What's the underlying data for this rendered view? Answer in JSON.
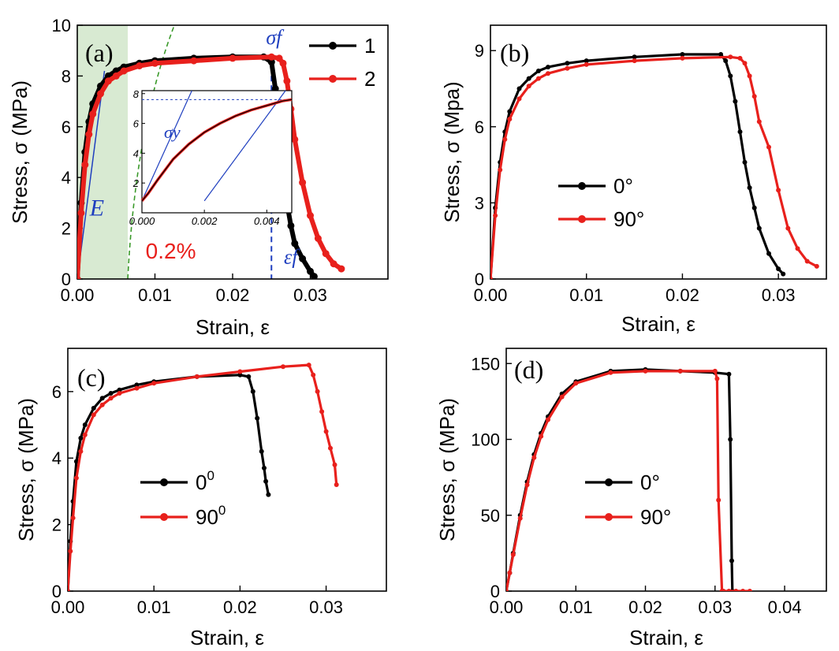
{
  "chart_data": [
    {
      "type": "line",
      "panel": "(a)",
      "xlabel": "Strain, ε",
      "ylabel": "Stress, σ (MPa)",
      "xlim": [
        0,
        0.04
      ],
      "ylim": [
        0,
        10
      ],
      "xticks": [
        "0.00",
        "0.01",
        "0.02",
        "0.03"
      ],
      "yticks": [
        "0",
        "2",
        "4",
        "6",
        "8",
        "10"
      ],
      "legend": "top-right",
      "annotations": {
        "sigma_f": "σf",
        "modulus": "E",
        "offset": "0.2%",
        "eps_f": "εf"
      },
      "inset": {
        "xticks": [
          "0.000",
          "0.002",
          "0.004"
        ],
        "yticks": [
          "2",
          "4",
          "6",
          "8"
        ],
        "xlim": [
          0,
          0.0048
        ],
        "ylim": [
          0,
          8.2
        ],
        "sigma_y": "σy",
        "curve": {
          "x": [
            0,
            0.0002,
            0.0005,
            0.001,
            0.0015,
            0.002,
            0.0025,
            0.003,
            0.0035,
            0.004,
            0.0045,
            0.0048
          ],
          "y": [
            0.8,
            1.3,
            2.2,
            3.6,
            4.6,
            5.4,
            6.0,
            6.5,
            6.9,
            7.2,
            7.5,
            7.6
          ]
        }
      },
      "series": [
        {
          "name": "1",
          "color": "#000000",
          "x": [
            0,
            0.0005,
            0.001,
            0.0015,
            0.002,
            0.003,
            0.004,
            0.005,
            0.006,
            0.008,
            0.01,
            0.015,
            0.02,
            0.024,
            0.025,
            0.0255,
            0.026,
            0.0265,
            0.027,
            0.0275,
            0.028,
            0.029,
            0.03,
            0.0305
          ],
          "y": [
            0,
            3.0,
            5.0,
            6.2,
            6.9,
            7.6,
            8.0,
            8.2,
            8.35,
            8.5,
            8.6,
            8.7,
            8.75,
            8.75,
            8.55,
            7.5,
            5.8,
            4.2,
            3.0,
            2.1,
            1.4,
            0.8,
            0.3,
            0.1
          ]
        },
        {
          "name": "2",
          "color": "#e8201c",
          "x": [
            0,
            0.0005,
            0.001,
            0.0015,
            0.002,
            0.003,
            0.004,
            0.005,
            0.006,
            0.008,
            0.01,
            0.015,
            0.02,
            0.025,
            0.026,
            0.0265,
            0.027,
            0.0275,
            0.028,
            0.029,
            0.03,
            0.031,
            0.032,
            0.033,
            0.034
          ],
          "y": [
            0,
            2.6,
            4.5,
            5.7,
            6.5,
            7.3,
            7.8,
            8.0,
            8.2,
            8.4,
            8.5,
            8.6,
            8.7,
            8.75,
            8.7,
            8.5,
            7.8,
            6.7,
            5.5,
            3.8,
            2.5,
            1.6,
            1.0,
            0.6,
            0.4
          ]
        }
      ]
    },
    {
      "type": "line",
      "panel": "(b)",
      "xlabel": "Strain, ε",
      "ylabel": "Stress, σ (Mpa)",
      "xlim": [
        0,
        0.035
      ],
      "ylim": [
        0,
        10
      ],
      "xticks": [
        "0.00",
        "0.01",
        "0.02",
        "0.03"
      ],
      "yticks": [
        "0",
        "3",
        "6",
        "9"
      ],
      "legend": "center-left",
      "series": [
        {
          "name": "0°",
          "color": "#000000",
          "x": [
            0,
            0.0005,
            0.001,
            0.0015,
            0.002,
            0.003,
            0.004,
            0.005,
            0.006,
            0.008,
            0.01,
            0.015,
            0.02,
            0.024,
            0.0245,
            0.025,
            0.0255,
            0.026,
            0.0265,
            0.027,
            0.0275,
            0.028,
            0.029,
            0.03,
            0.0305
          ],
          "y": [
            0,
            2.8,
            4.6,
            5.8,
            6.6,
            7.5,
            7.9,
            8.2,
            8.35,
            8.5,
            8.6,
            8.75,
            8.85,
            8.85,
            8.6,
            8.0,
            7.0,
            5.8,
            4.6,
            3.6,
            2.8,
            2.0,
            1.0,
            0.4,
            0.2
          ]
        },
        {
          "name": "90°",
          "color": "#e8201c",
          "x": [
            0,
            0.0005,
            0.001,
            0.0015,
            0.002,
            0.003,
            0.004,
            0.005,
            0.006,
            0.008,
            0.01,
            0.015,
            0.02,
            0.025,
            0.026,
            0.0265,
            0.027,
            0.0275,
            0.028,
            0.029,
            0.03,
            0.031,
            0.032,
            0.033,
            0.034
          ],
          "y": [
            0,
            2.5,
            4.3,
            5.5,
            6.3,
            7.1,
            7.6,
            7.9,
            8.1,
            8.3,
            8.45,
            8.6,
            8.7,
            8.75,
            8.7,
            8.5,
            8.0,
            7.2,
            6.2,
            5.2,
            3.5,
            2.0,
            1.2,
            0.7,
            0.5
          ]
        }
      ]
    },
    {
      "type": "line",
      "panel": "(c)",
      "xlabel": "Strain, ε",
      "ylabel": "Stress, σ (MPa)",
      "xlim": [
        0,
        0.037
      ],
      "ylim": [
        0,
        7.3
      ],
      "xticks": [
        "0.00",
        "0.01",
        "0.02",
        "0.03"
      ],
      "yticks": [
        "0",
        "2",
        "4",
        "6"
      ],
      "legend": "center-left",
      "series": [
        {
          "name": "0",
          "sup": "0",
          "color": "#000000",
          "x": [
            0,
            0.0003,
            0.0006,
            0.001,
            0.0015,
            0.002,
            0.003,
            0.004,
            0.005,
            0.006,
            0.008,
            0.01,
            0.015,
            0.02,
            0.021,
            0.0215,
            0.022,
            0.0225,
            0.0228,
            0.023,
            0.0233
          ],
          "y": [
            0,
            1.5,
            2.7,
            3.9,
            4.6,
            5.0,
            5.5,
            5.8,
            5.95,
            6.05,
            6.2,
            6.3,
            6.45,
            6.5,
            6.45,
            6.0,
            5.2,
            4.2,
            3.7,
            3.3,
            2.9
          ]
        },
        {
          "name": "90",
          "sup": "0",
          "color": "#e8201c",
          "x": [
            0,
            0.0003,
            0.0006,
            0.001,
            0.0015,
            0.002,
            0.003,
            0.004,
            0.005,
            0.006,
            0.008,
            0.01,
            0.015,
            0.02,
            0.025,
            0.028,
            0.0285,
            0.029,
            0.0295,
            0.03,
            0.0305,
            0.031,
            0.0312
          ],
          "y": [
            0,
            1.2,
            2.2,
            3.4,
            4.2,
            4.7,
            5.3,
            5.6,
            5.8,
            5.95,
            6.1,
            6.25,
            6.45,
            6.6,
            6.75,
            6.8,
            6.5,
            6.0,
            5.4,
            4.8,
            4.3,
            3.8,
            3.2
          ]
        }
      ]
    },
    {
      "type": "line",
      "panel": "(d)",
      "xlabel": "Strain, ε",
      "ylabel": "Stress, σ (MPa)",
      "xlim": [
        0,
        0.046
      ],
      "ylim": [
        0,
        160
      ],
      "xticks": [
        "0.00",
        "0.01",
        "0.02",
        "0.03",
        "0.04"
      ],
      "yticks": [
        "0",
        "50",
        "100",
        "150"
      ],
      "legend": "center",
      "series": [
        {
          "name": "0°",
          "color": "#000000",
          "x": [
            0,
            0.0005,
            0.001,
            0.002,
            0.003,
            0.004,
            0.005,
            0.006,
            0.008,
            0.01,
            0.015,
            0.02,
            0.025,
            0.03,
            0.032,
            0.0322,
            0.0324,
            0.0325
          ],
          "y": [
            0,
            12,
            25,
            50,
            72,
            90,
            104,
            115,
            130,
            138,
            145,
            146,
            145,
            144,
            143,
            100,
            20,
            0
          ]
        },
        {
          "name": "90°",
          "color": "#e8201c",
          "x": [
            0,
            0.0005,
            0.001,
            0.002,
            0.003,
            0.004,
            0.005,
            0.006,
            0.008,
            0.01,
            0.015,
            0.02,
            0.025,
            0.03,
            0.0303,
            0.0305,
            0.031,
            0.0312,
            0.032,
            0.033,
            0.034,
            0.035
          ],
          "y": [
            0,
            12,
            24,
            48,
            70,
            88,
            102,
            113,
            128,
            137,
            144,
            145,
            145,
            145,
            140,
            60,
            0,
            0,
            0,
            0,
            0,
            0
          ]
        }
      ]
    }
  ]
}
